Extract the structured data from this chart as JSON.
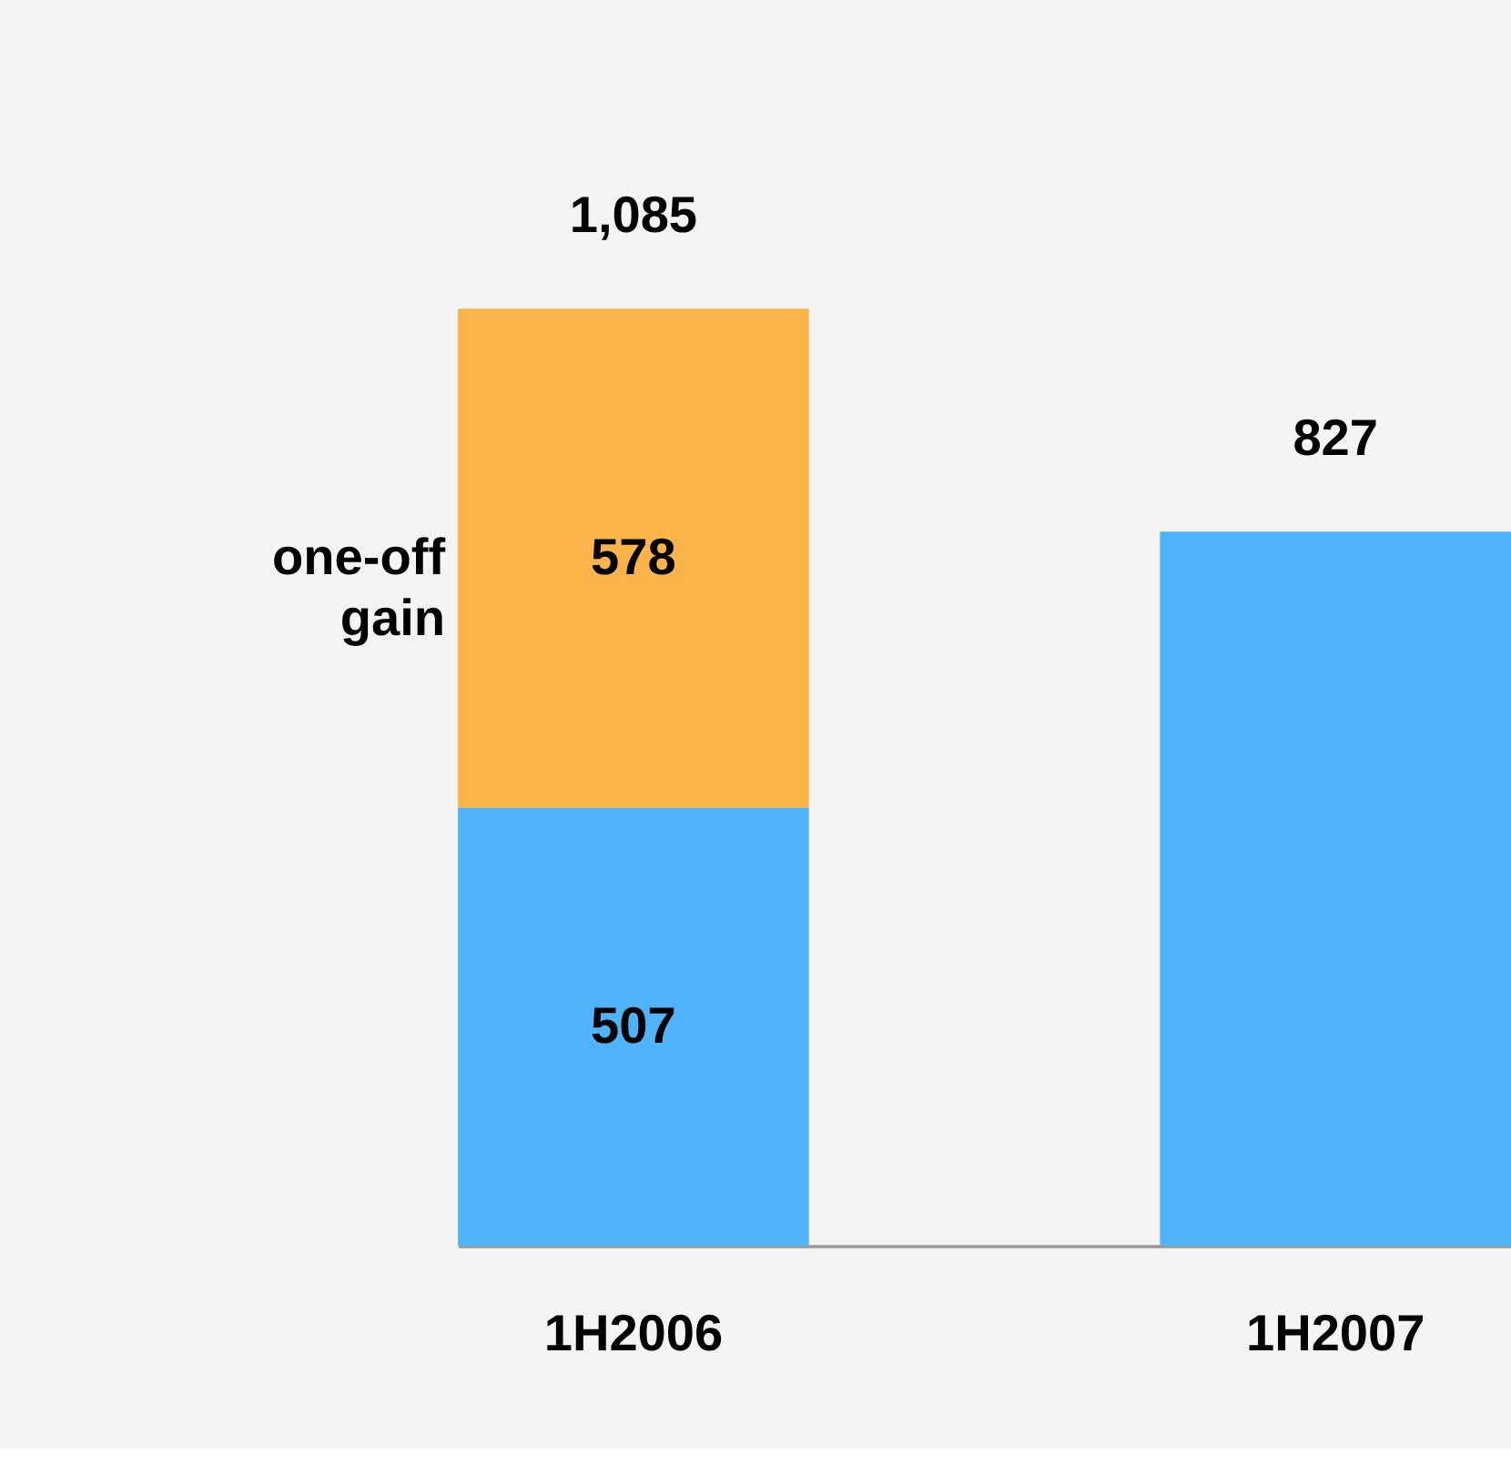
{
  "chart_data": {
    "type": "bar",
    "stacked": true,
    "categories": [
      "1H2006",
      "1H2007"
    ],
    "series": [
      {
        "color": "#4fb4fc",
        "values": [
          507,
          827
        ],
        "value_labels": [
          "507",
          null
        ]
      },
      {
        "name": "one-off gain",
        "color": "#fbb44a",
        "values": [
          578,
          null
        ],
        "value_labels": [
          "578",
          null
        ]
      }
    ],
    "totals": [
      "1,085",
      "827"
    ],
    "legend": false,
    "grid": false
  }
}
